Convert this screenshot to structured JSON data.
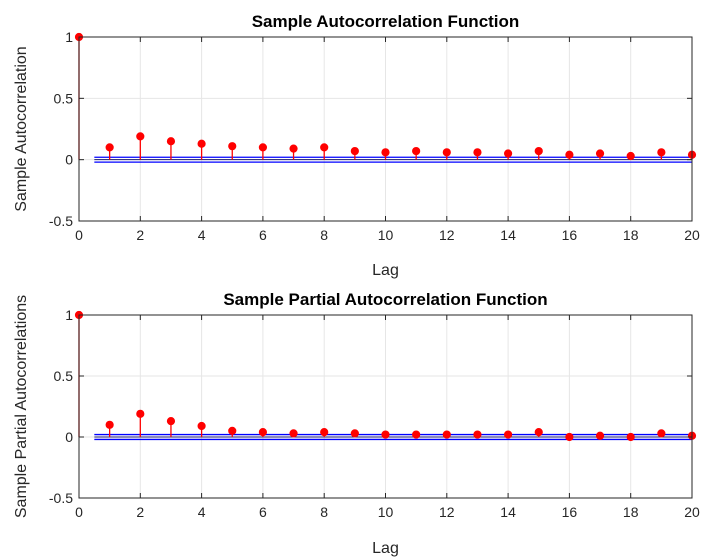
{
  "chart_data": [
    {
      "type": "stem",
      "title": "Sample Autocorrelation Function",
      "xlabel": "Lag",
      "ylabel": "Sample Autocorrelation",
      "xlim": [
        0,
        20
      ],
      "ylim": [
        -0.5,
        1
      ],
      "xticks": [
        "0",
        "2",
        "4",
        "6",
        "8",
        "10",
        "12",
        "14",
        "16",
        "18",
        "20"
      ],
      "yticks": [
        "-0.5",
        "0",
        "0.5",
        "1"
      ],
      "grid": true,
      "confidence_bounds": [
        0.02,
        -0.02
      ],
      "x": [
        0,
        1,
        2,
        3,
        4,
        5,
        6,
        7,
        8,
        9,
        10,
        11,
        12,
        13,
        14,
        15,
        16,
        17,
        18,
        19,
        20
      ],
      "values": [
        1.0,
        0.1,
        0.19,
        0.15,
        0.13,
        0.11,
        0.1,
        0.09,
        0.1,
        0.07,
        0.06,
        0.07,
        0.06,
        0.06,
        0.05,
        0.07,
        0.04,
        0.05,
        0.03,
        0.06,
        0.04
      ],
      "colors": {
        "stem": "#ff0000",
        "bounds": "#0000ff",
        "grid": "#e6e6e6"
      }
    },
    {
      "type": "stem",
      "title": "Sample Partial Autocorrelation Function",
      "xlabel": "Lag",
      "ylabel": "Sample Partial Autocorrelations",
      "xlim": [
        0,
        20
      ],
      "ylim": [
        -0.5,
        1
      ],
      "xticks": [
        "0",
        "2",
        "4",
        "6",
        "8",
        "10",
        "12",
        "14",
        "16",
        "18",
        "20"
      ],
      "yticks": [
        "-0.5",
        "0",
        "0.5",
        "1"
      ],
      "grid": true,
      "confidence_bounds": [
        0.02,
        -0.02
      ],
      "x": [
        0,
        1,
        2,
        3,
        4,
        5,
        6,
        7,
        8,
        9,
        10,
        11,
        12,
        13,
        14,
        15,
        16,
        17,
        18,
        19,
        20
      ],
      "values": [
        1.0,
        0.1,
        0.19,
        0.13,
        0.09,
        0.05,
        0.04,
        0.03,
        0.04,
        0.03,
        0.02,
        0.02,
        0.02,
        0.02,
        0.02,
        0.04,
        0.0,
        0.01,
        0.0,
        0.03,
        0.01
      ],
      "colors": {
        "stem": "#ff0000",
        "bounds": "#0000ff",
        "grid": "#e6e6e6"
      }
    }
  ]
}
